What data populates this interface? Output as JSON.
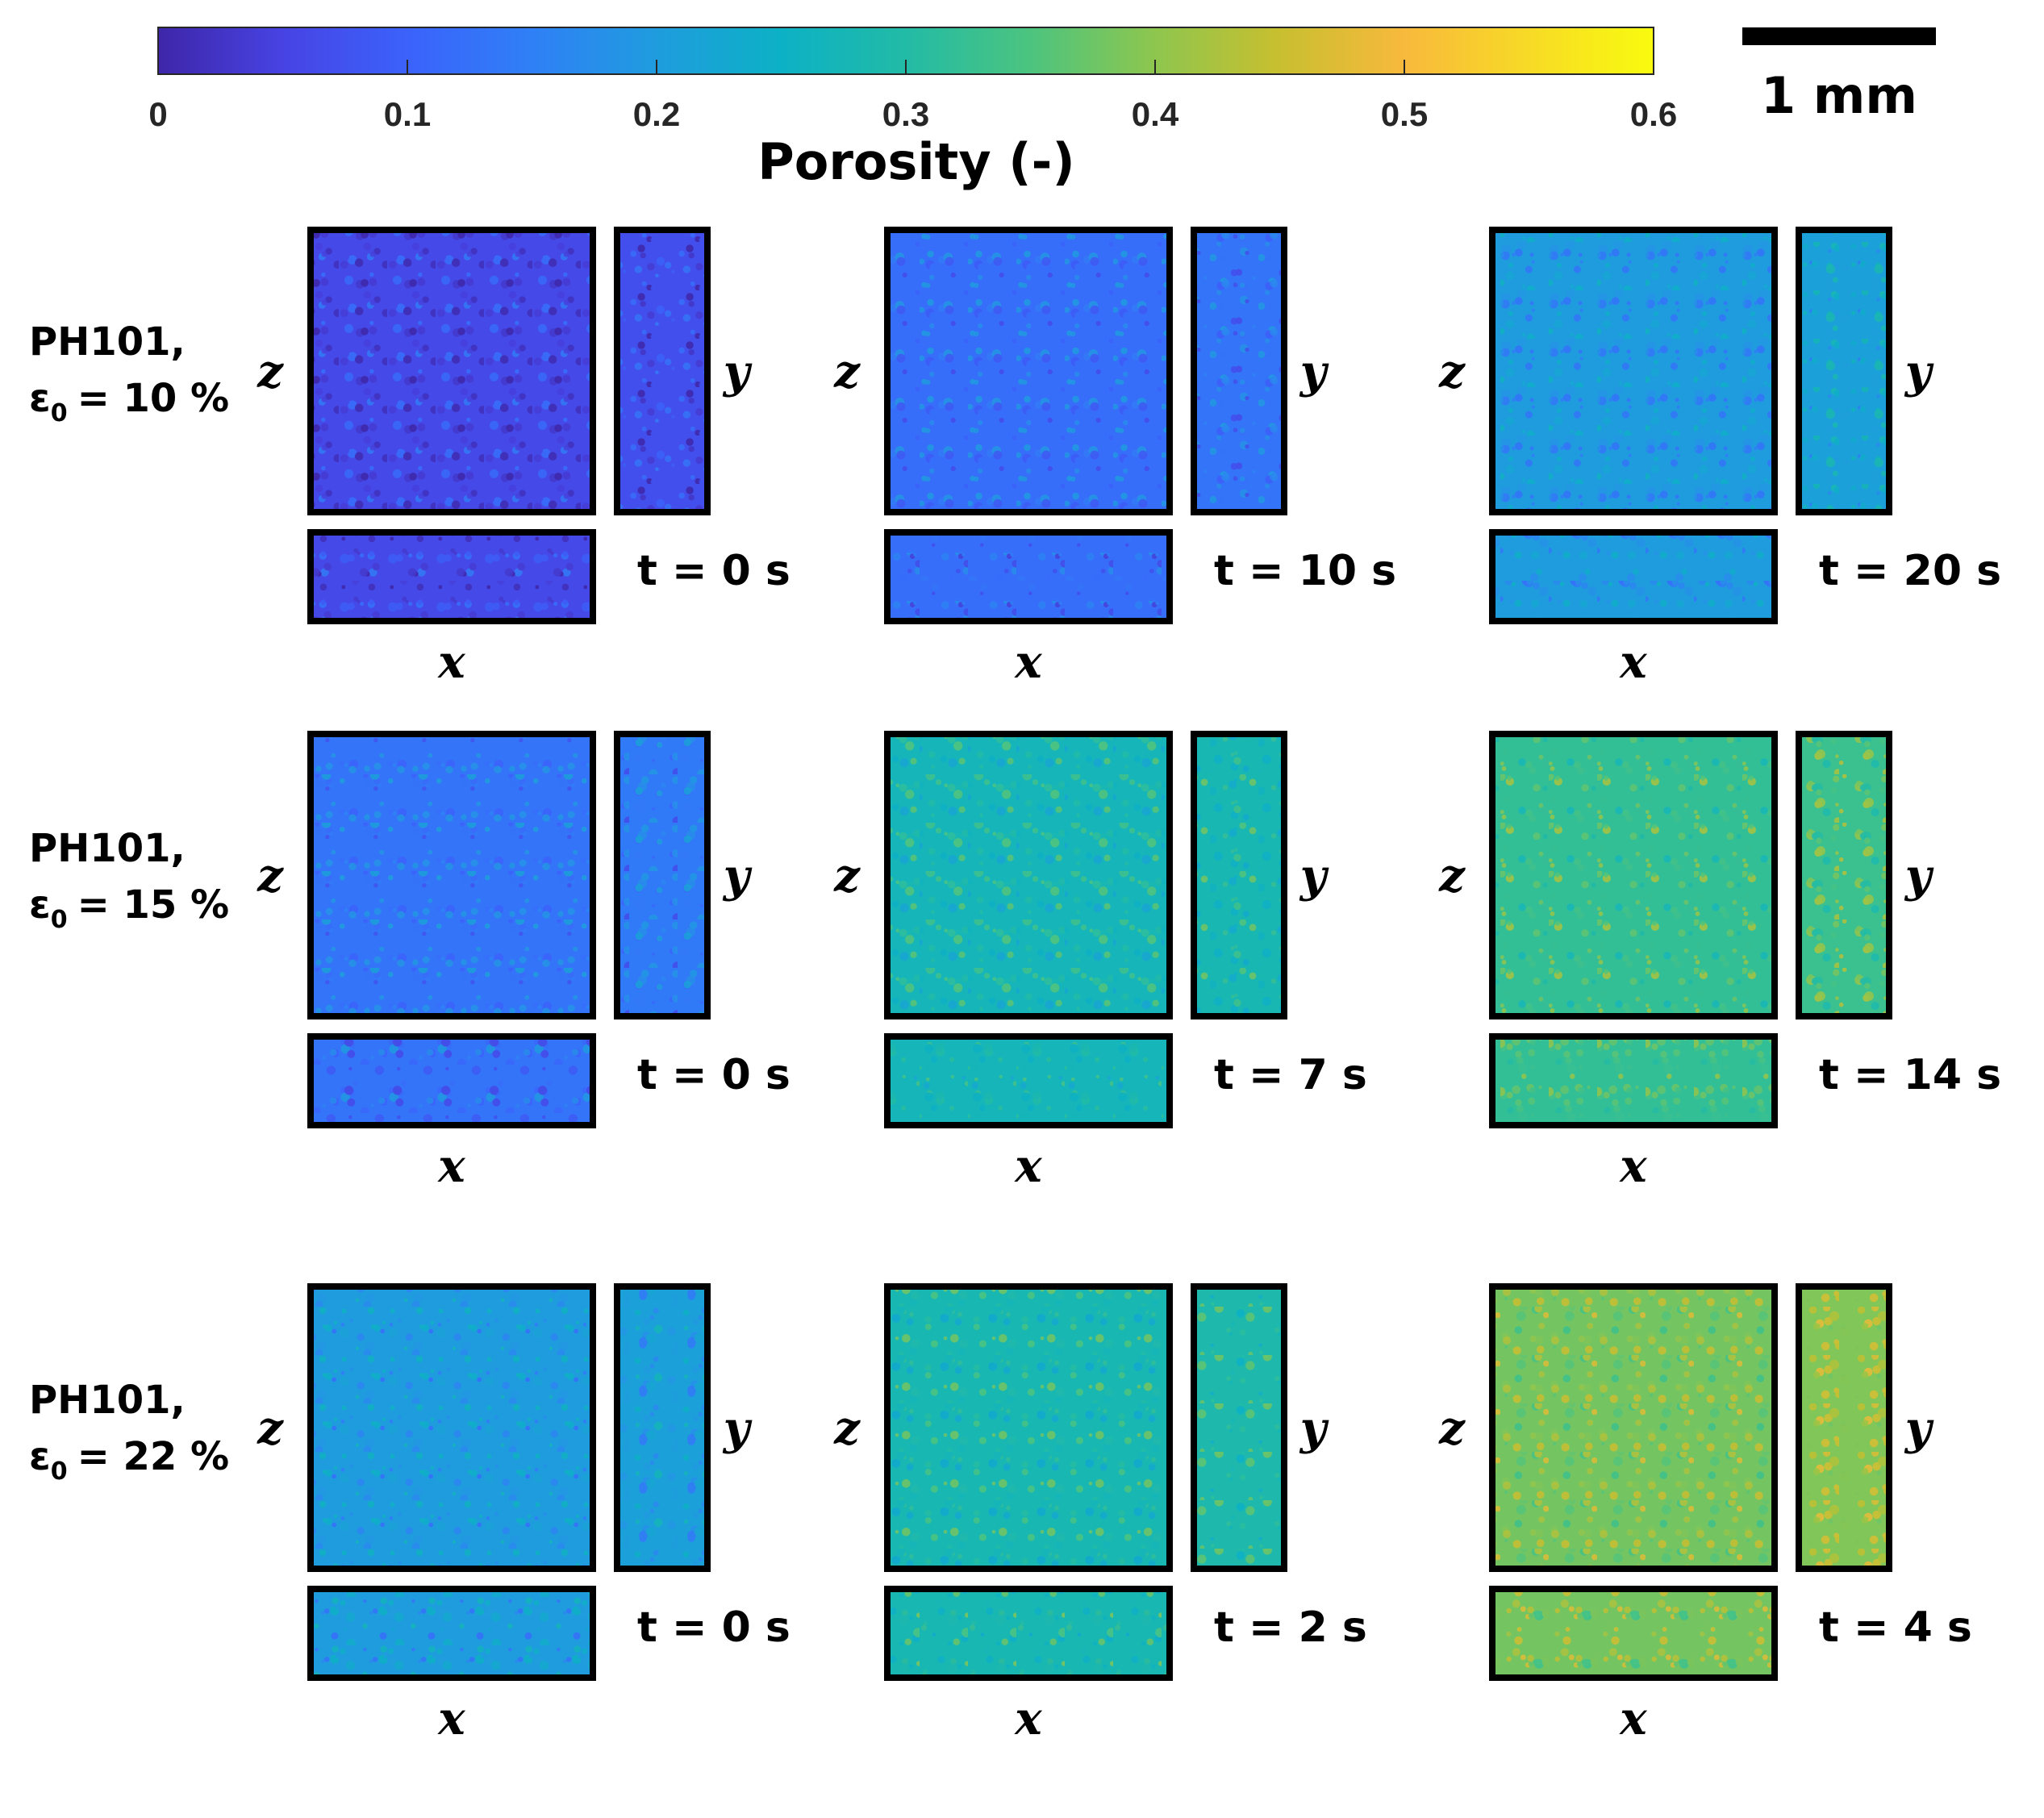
{
  "figure": {
    "colorbar": {
      "title": "Porosity (-)",
      "ticks": [
        "0",
        "0.1",
        "0.2",
        "0.3",
        "0.4",
        "0.5",
        "0.6"
      ],
      "range": [
        0,
        0.6
      ],
      "colors": [
        "#3e26a8",
        "#4743e3",
        "#3b62fb",
        "#2f80f6",
        "#1f9cde",
        "#0cb1c5",
        "#22bba6",
        "#4cc47f",
        "#8ec64e",
        "#c8bf2f",
        "#f8b93c",
        "#f7da26",
        "#f9fb0e"
      ]
    },
    "scale_bar": {
      "label": "1 mm"
    },
    "axis_labels": {
      "x": "x",
      "y": "y",
      "z": "z"
    },
    "rows": [
      {
        "material": "PH101,",
        "porosity_symbol": "ε",
        "porosity_sub": "0",
        "porosity_value": "= 10 %",
        "panels": [
          {
            "time": "t = 0 s",
            "porosity_level": 0.06
          },
          {
            "time": "t = 10 s",
            "porosity_level": 0.12
          },
          {
            "time": "t = 20 s",
            "porosity_level": 0.2
          }
        ]
      },
      {
        "material": "PH101,",
        "porosity_symbol": "ε",
        "porosity_sub": "0",
        "porosity_value": "= 15 %",
        "panels": [
          {
            "time": "t = 0 s",
            "porosity_level": 0.13
          },
          {
            "time": "t = 7 s",
            "porosity_level": 0.27
          },
          {
            "time": "t = 14 s",
            "porosity_level": 0.32
          }
        ]
      },
      {
        "material": "PH101,",
        "porosity_symbol": "ε",
        "porosity_sub": "0",
        "porosity_value": "= 22 %",
        "panels": [
          {
            "time": "t = 0 s",
            "porosity_level": 0.2
          },
          {
            "time": "t = 2 s",
            "porosity_level": 0.28
          },
          {
            "time": "t = 4 s",
            "porosity_level": 0.38
          }
        ]
      }
    ]
  }
}
